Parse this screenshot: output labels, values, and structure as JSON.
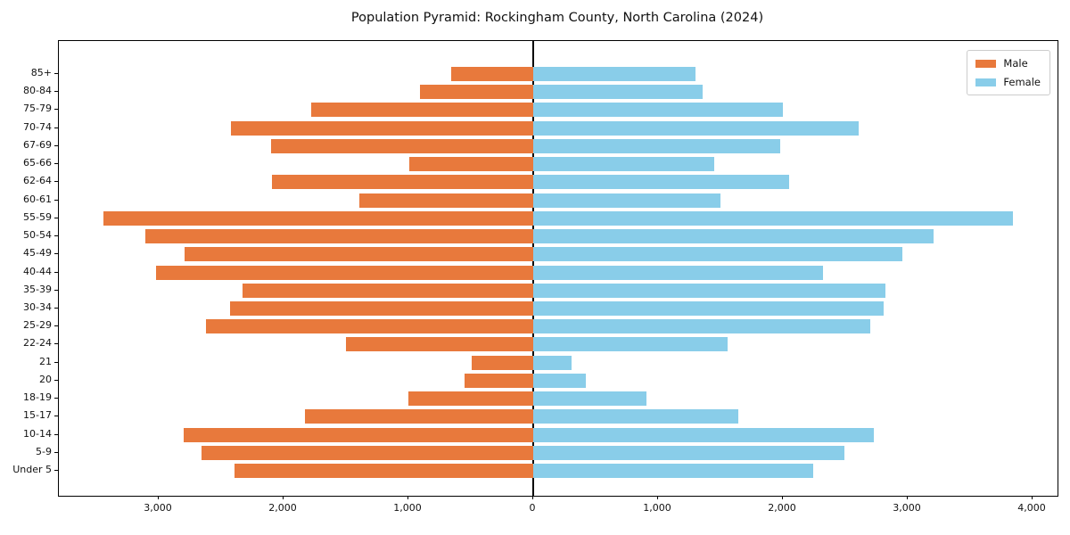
{
  "title": "Population Pyramid: Rockingham County, North Carolina (2024)",
  "legend": {
    "male_label": "Male",
    "female_label": "Female",
    "position": "upper right"
  },
  "colors": {
    "male": "#E8793C",
    "female": "#89CDE9",
    "axis": "#000000",
    "background": "#ffffff"
  },
  "chart_data": {
    "type": "bar",
    "subtype": "population-pyramid",
    "orientation": "horizontal",
    "title": "Population Pyramid: Rockingham County, North Carolina (2024)",
    "categories_top_to_bottom": [
      "85+",
      "80-84",
      "75-79",
      "70-74",
      "67-69",
      "65-66",
      "62-64",
      "60-61",
      "55-59",
      "50-54",
      "45-49",
      "40-44",
      "35-39",
      "30-34",
      "25-29",
      "22-24",
      "21",
      "20",
      "18-19",
      "15-17",
      "10-14",
      "5-9",
      "Under 5"
    ],
    "series": [
      {
        "name": "Male",
        "side": "left",
        "color": "#E8793C",
        "values": [
          660,
          910,
          1780,
          2420,
          2100,
          990,
          2090,
          1390,
          3440,
          3110,
          2790,
          3020,
          2330,
          2430,
          2620,
          1500,
          490,
          550,
          1000,
          1830,
          2800,
          2660,
          2390
        ]
      },
      {
        "name": "Female",
        "side": "right",
        "color": "#89CDE9",
        "values": [
          1300,
          1360,
          2000,
          2610,
          1980,
          1450,
          2050,
          1500,
          3840,
          3210,
          2960,
          2320,
          2820,
          2810,
          2700,
          1560,
          310,
          420,
          910,
          1640,
          2730,
          2490,
          2240
        ]
      }
    ],
    "xlim": [
      -3800,
      4200
    ],
    "x_ticks": [
      -3000,
      -2000,
      -1000,
      0,
      1000,
      2000,
      3000,
      4000
    ],
    "x_tick_labels": [
      "3,000",
      "2,000",
      "1,000",
      "0",
      "1,000",
      "2,000",
      "3,000",
      "4,000"
    ],
    "xlabel": "",
    "ylabel": "",
    "grid": false,
    "zero_axis_line": true,
    "legend_entries": [
      "Male",
      "Female"
    ],
    "legend_position": "upper right"
  }
}
